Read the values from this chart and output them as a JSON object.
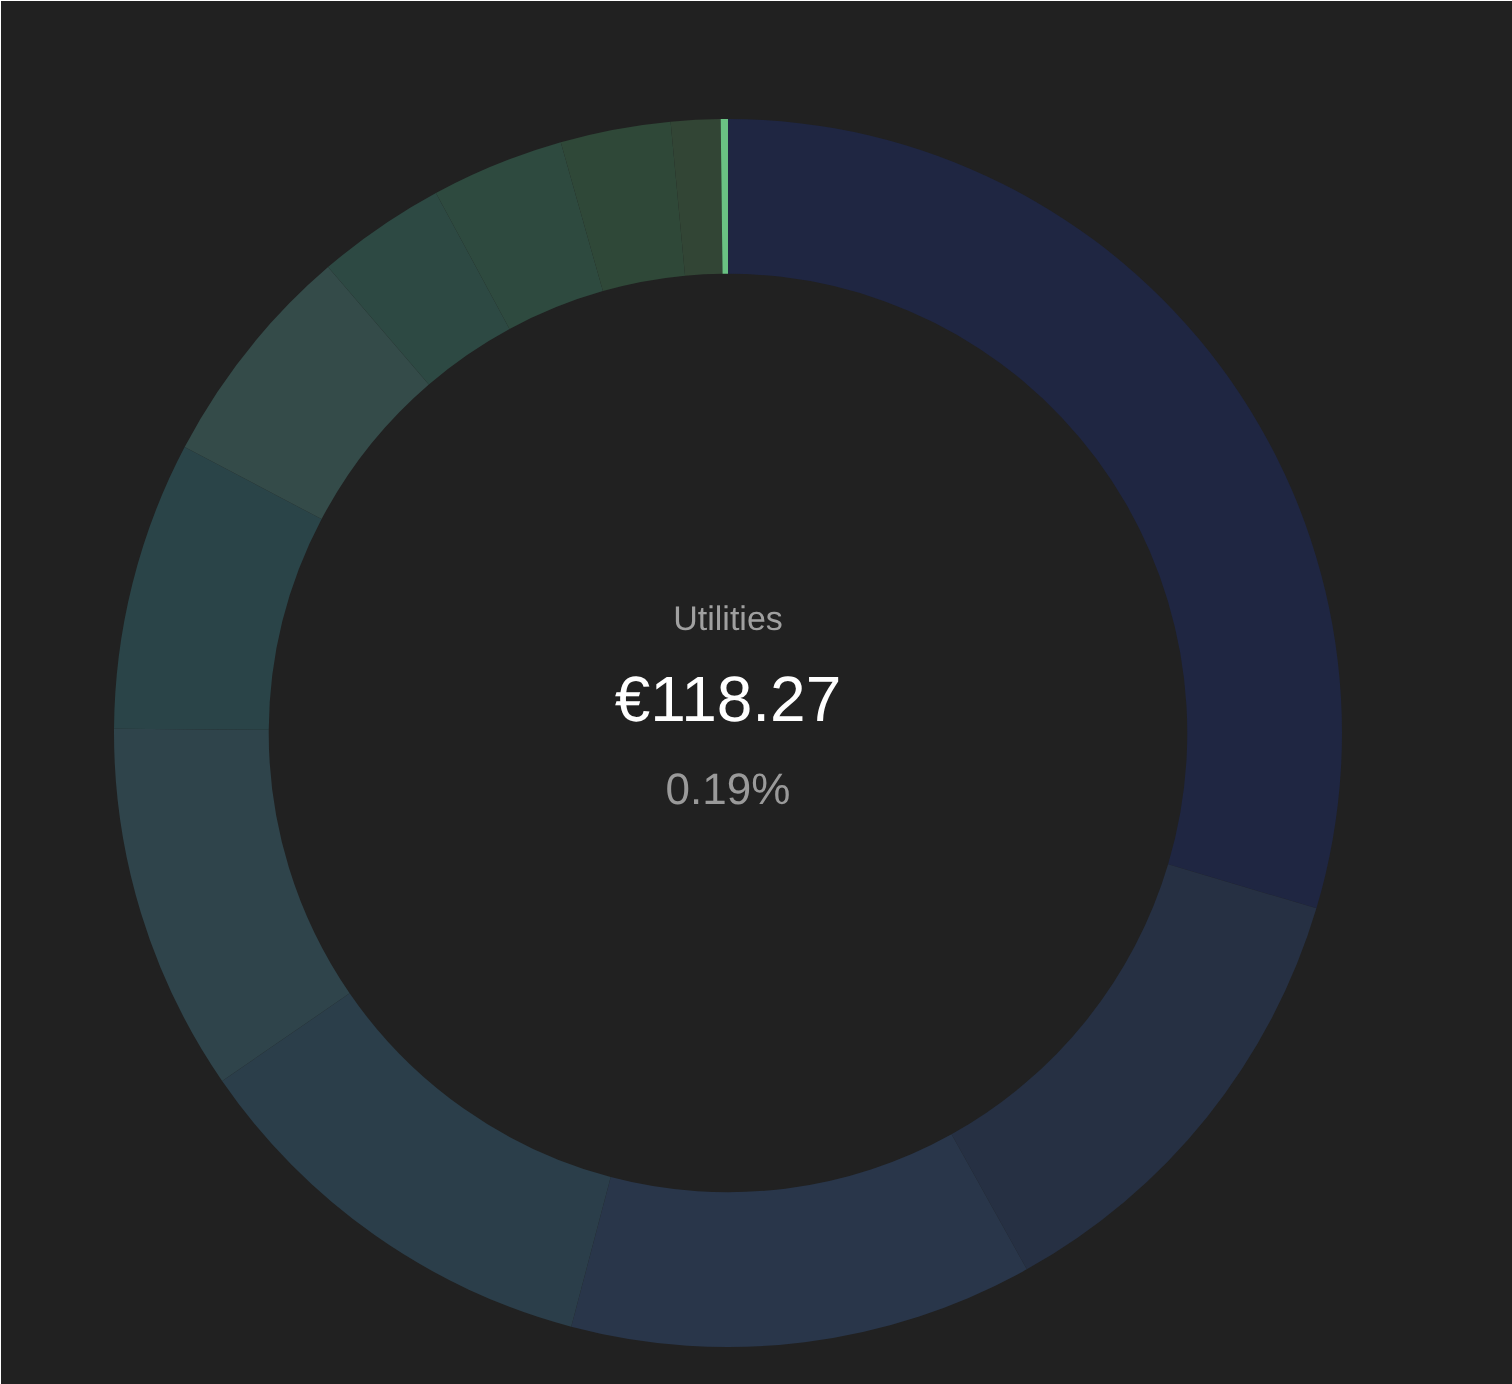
{
  "chart_data": {
    "type": "donut",
    "categories": [
      null,
      null,
      null,
      null,
      null,
      null,
      null,
      null,
      null,
      null,
      null,
      "Utilities"
    ],
    "values": [
      29.61,
      12.3,
      12.2,
      11.3,
      9.7,
      7.6,
      6.0,
      3.4,
      3.5,
      2.9,
      1.3,
      0.19
    ],
    "colors": [
      "#1f2642",
      "#263043",
      "#29364a",
      "#2b3e4a",
      "#2f444b",
      "#2a4448",
      "#344b49",
      "#2d4943",
      "#2e4a3f",
      "#2f4838",
      "#324535",
      "#6ac283"
    ],
    "annotations": [
      "€118.27",
      "0.19%"
    ]
  }
}
